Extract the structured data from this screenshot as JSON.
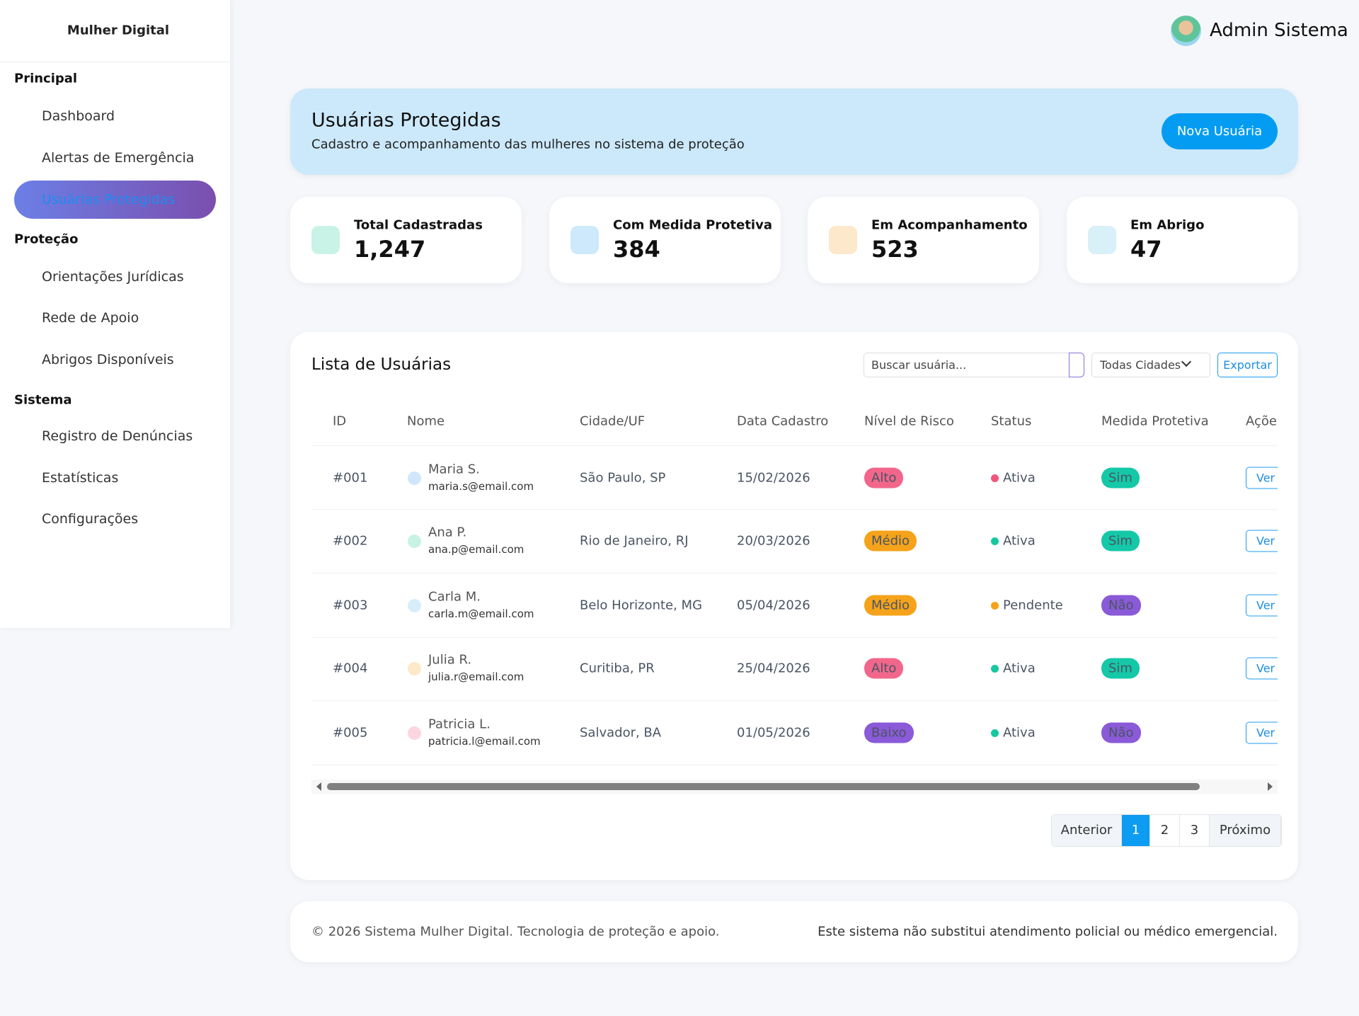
{
  "sidebar": {
    "brand": "Mulher Digital",
    "sections": [
      {
        "title": "Principal",
        "items": [
          "Dashboard",
          "Alertas de Emergência",
          "Usuárias Protegidas"
        ]
      },
      {
        "title": "Proteção",
        "items": [
          "Orientações Jurídicas",
          "Rede de Apoio",
          "Abrigos Disponíveis"
        ]
      },
      {
        "title": "Sistema",
        "items": [
          "Registro de Denúncias",
          "Estatísticas",
          "Configurações"
        ]
      }
    ]
  },
  "header": {
    "user": "Admin Sistema"
  },
  "banner": {
    "title": "Usuárias Protegidas",
    "subtitle": "Cadastro e acompanhamento das mulheres no sistema de proteção",
    "button": "Nova Usuária"
  },
  "stats": [
    {
      "label": "Total Cadastradas",
      "value": "1,247"
    },
    {
      "label": "Com Medida Protetiva",
      "value": "384"
    },
    {
      "label": "Em Acompanhamento",
      "value": "523"
    },
    {
      "label": "Em Abrigo",
      "value": "47"
    }
  ],
  "table": {
    "title": "Lista de Usuárias",
    "search": "Buscar usuária...",
    "city_filter": "Todas Cidades",
    "export": "Exportar",
    "columns": [
      "ID",
      "Nome",
      "Cidade/UF",
      "Data Cadastro",
      "Nível de Risco",
      "Status",
      "Medida Protetiva",
      "Ações"
    ],
    "rows": [
      {
        "id": "#001",
        "name": "Maria S.",
        "email": "maria.s@email.com",
        "city": "São Paulo, SP",
        "date": "15/02/2026",
        "risk": "Alto",
        "status": "Ativa",
        "measure": "Sim",
        "action": "Ver"
      },
      {
        "id": "#002",
        "name": "Ana P.",
        "email": "ana.p@email.com",
        "city": "Rio de Janeiro, RJ",
        "date": "20/03/2026",
        "risk": "Médio",
        "status": "Ativa",
        "measure": "Sim",
        "action": "Ver"
      },
      {
        "id": "#003",
        "name": "Carla M.",
        "email": "carla.m@email.com",
        "city": "Belo Horizonte, MG",
        "date": "05/04/2026",
        "risk": "Médio",
        "status": "Pendente",
        "measure": "Não",
        "action": "Ver"
      },
      {
        "id": "#004",
        "name": "Julia R.",
        "email": "julia.r@email.com",
        "city": "Curitiba, PR",
        "date": "25/04/2026",
        "risk": "Alto",
        "status": "Ativa",
        "measure": "Sim",
        "action": "Ver"
      },
      {
        "id": "#005",
        "name": "Patricia L.",
        "email": "patricia.l@email.com",
        "city": "Salvador, BA",
        "date": "01/05/2026",
        "risk": "Baixo",
        "status": "Ativa",
        "measure": "Não",
        "action": "Ver"
      }
    ]
  },
  "pagination": {
    "prev": "Anterior",
    "pages": [
      "1",
      "2",
      "3"
    ],
    "next": "Próximo"
  },
  "footer": {
    "left": "© 2026 Sistema Mulher Digital. Tecnologia de proteção e apoio.",
    "right": "Este sistema não substitui atendimento policial ou médico emergencial."
  }
}
